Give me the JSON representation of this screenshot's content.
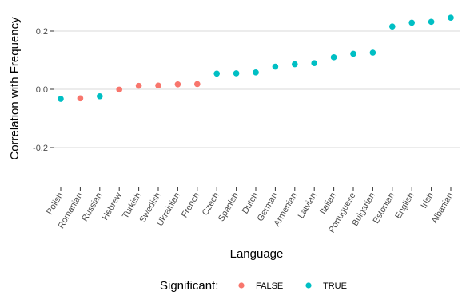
{
  "chart_data": {
    "type": "scatter",
    "xlabel": "Language",
    "ylabel": "Correlation with Frequency",
    "y_ticks": [
      "0.2",
      "0.0",
      "-0.2"
    ],
    "y_tick_values": [
      0.2,
      0.0,
      -0.2
    ],
    "ylim": [
      -0.32,
      0.26
    ],
    "grid": true,
    "legend": {
      "title": "Significant:",
      "placement": "bottom",
      "entries": [
        {
          "label": "FALSE",
          "color": "#F8766D"
        },
        {
          "label": "TRUE",
          "color": "#00BFC4"
        }
      ]
    },
    "categories": [
      "Polish",
      "Romanian",
      "Russian",
      "Hebrew",
      "Turkish",
      "Swedish",
      "Ukrainian",
      "French",
      "Czech",
      "Spanish",
      "Dutch",
      "German",
      "Armenian",
      "Latvian",
      "Italian",
      "Portuguese",
      "Bulgarian",
      "Estonian",
      "English",
      "Irish",
      "Albanian"
    ],
    "values": [
      -0.033,
      -0.031,
      -0.024,
      -0.001,
      0.012,
      0.013,
      0.017,
      0.018,
      0.054,
      0.055,
      0.058,
      0.078,
      0.086,
      0.09,
      0.11,
      0.122,
      0.126,
      0.216,
      0.229,
      0.232,
      0.246
    ],
    "significant": [
      "TRUE",
      "FALSE",
      "TRUE",
      "FALSE",
      "FALSE",
      "FALSE",
      "FALSE",
      "FALSE",
      "TRUE",
      "TRUE",
      "TRUE",
      "TRUE",
      "TRUE",
      "TRUE",
      "TRUE",
      "TRUE",
      "TRUE",
      "TRUE",
      "TRUE",
      "TRUE",
      "TRUE"
    ]
  }
}
